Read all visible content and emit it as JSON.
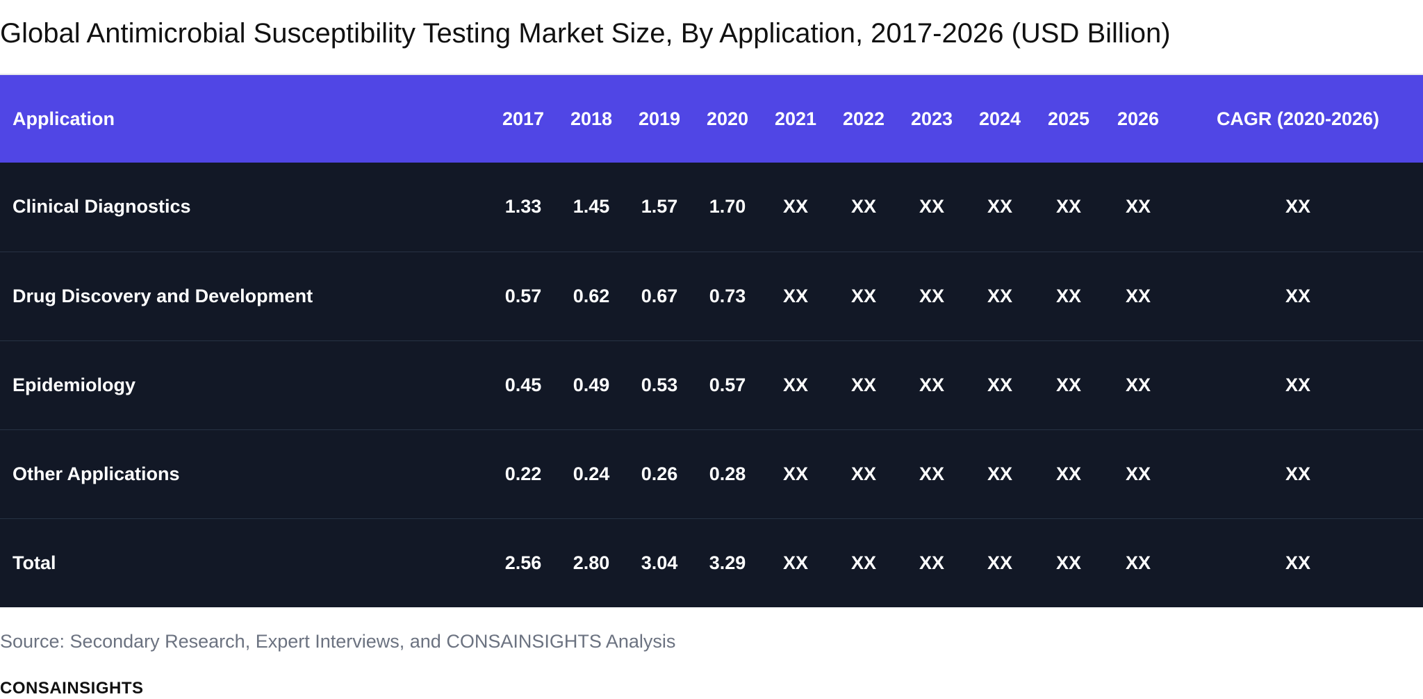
{
  "title": "Global Antimicrobial Susceptibility Testing Market Size, By Application, 2017-2026 (USD Billion)",
  "source": "Source: Secondary Research, Expert Interviews, and CONSAINSIGHTS Analysis",
  "brand": "CONSAINSIGHTS",
  "colors": {
    "header_bg": "#5046e5",
    "body_bg": "#121826",
    "source_text": "#6b7280"
  },
  "chart_data": {
    "type": "table",
    "title": "Global Antimicrobial Susceptibility Testing Market Size, By Application, 2017-2026 (USD Billion)",
    "columns": [
      "Application",
      "2017",
      "2018",
      "2019",
      "2020",
      "2021",
      "2022",
      "2023",
      "2024",
      "2025",
      "2026",
      "CAGR (2020-2026)"
    ],
    "rows": [
      [
        "Clinical Diagnostics",
        "1.33",
        "1.45",
        "1.57",
        "1.70",
        "XX",
        "XX",
        "XX",
        "XX",
        "XX",
        "XX",
        "XX"
      ],
      [
        "Drug Discovery and Development",
        "0.57",
        "0.62",
        "0.67",
        "0.73",
        "XX",
        "XX",
        "XX",
        "XX",
        "XX",
        "XX",
        "XX"
      ],
      [
        "Epidemiology",
        "0.45",
        "0.49",
        "0.53",
        "0.57",
        "XX",
        "XX",
        "XX",
        "XX",
        "XX",
        "XX",
        "XX"
      ],
      [
        "Other Applications",
        "0.22",
        "0.24",
        "0.26",
        "0.28",
        "XX",
        "XX",
        "XX",
        "XX",
        "XX",
        "XX",
        "XX"
      ],
      [
        "Total",
        "2.56",
        "2.80",
        "3.04",
        "3.29",
        "XX",
        "XX",
        "XX",
        "XX",
        "XX",
        "XX",
        "XX"
      ]
    ]
  }
}
